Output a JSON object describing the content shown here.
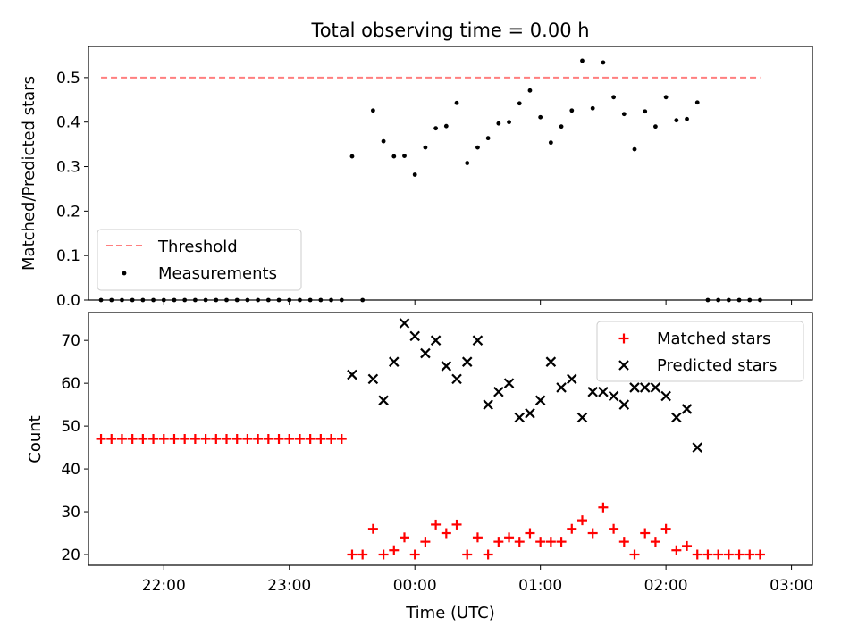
{
  "title": "Total observing time = 0.00 h",
  "xlabel": "Time (UTC)",
  "x_ticks": [
    "22:00",
    "23:00",
    "00:00",
    "01:00",
    "02:00",
    "03:00"
  ],
  "colors": {
    "threshold": "#ff7f7f",
    "measurements": "#000000",
    "matched": "#ff0000",
    "predicted": "#000000"
  },
  "chart_data": [
    {
      "type": "scatter",
      "ylabel": "Matched/Predicted stars",
      "ylim": [
        0,
        0.57
      ],
      "y_ticks": [
        0.0,
        0.1,
        0.2,
        0.3,
        0.4,
        0.5
      ],
      "y_tick_labels": [
        "0.0",
        "0.1",
        "0.2",
        "0.3",
        "0.4",
        "0.5"
      ],
      "xlim_minutes_from_2130": [
        -6.0,
        340.0
      ],
      "legend": {
        "placement": "lower-left",
        "entries": [
          "Threshold",
          "Measurements"
        ]
      },
      "threshold": {
        "name": "Threshold",
        "value": 0.5,
        "x": [
          "21:30",
          "02:45"
        ]
      },
      "series": [
        {
          "name": "Measurements",
          "points": [
            [
              "21:30",
              0.0
            ],
            [
              "21:35",
              0.0
            ],
            [
              "21:40",
              0.0
            ],
            [
              "21:45",
              0.0
            ],
            [
              "21:50",
              0.0
            ],
            [
              "21:55",
              0.0
            ],
            [
              "22:00",
              0.0
            ],
            [
              "22:05",
              0.0
            ],
            [
              "22:10",
              0.0
            ],
            [
              "22:15",
              0.0
            ],
            [
              "22:20",
              0.0
            ],
            [
              "22:25",
              0.0
            ],
            [
              "22:30",
              0.0
            ],
            [
              "22:35",
              0.0
            ],
            [
              "22:40",
              0.0
            ],
            [
              "22:45",
              0.0
            ],
            [
              "22:50",
              0.0
            ],
            [
              "22:55",
              0.0
            ],
            [
              "23:00",
              0.0
            ],
            [
              "23:05",
              0.0
            ],
            [
              "23:10",
              0.0
            ],
            [
              "23:15",
              0.0
            ],
            [
              "23:20",
              0.0
            ],
            [
              "23:25",
              0.0
            ],
            [
              "23:30",
              0.323
            ],
            [
              "23:35",
              0.0
            ],
            [
              "23:40",
              0.426
            ],
            [
              "23:45",
              0.357
            ],
            [
              "23:50",
              0.323
            ],
            [
              "23:55",
              0.324
            ],
            [
              "00:00",
              0.282
            ],
            [
              "00:05",
              0.343
            ],
            [
              "00:10",
              0.386
            ],
            [
              "00:15",
              0.391
            ],
            [
              "00:20",
              0.443
            ],
            [
              "00:25",
              0.308
            ],
            [
              "00:30",
              0.343
            ],
            [
              "00:35",
              0.364
            ],
            [
              "00:40",
              0.397
            ],
            [
              "00:45",
              0.4
            ],
            [
              "00:50",
              0.442
            ],
            [
              "00:55",
              0.471
            ],
            [
              "01:00",
              0.411
            ],
            [
              "01:05",
              0.354
            ],
            [
              "01:10",
              0.39
            ],
            [
              "01:15",
              0.426
            ],
            [
              "01:20",
              0.538
            ],
            [
              "01:25",
              0.431
            ],
            [
              "01:30",
              0.534
            ],
            [
              "01:35",
              0.456
            ],
            [
              "01:40",
              0.418
            ],
            [
              "01:45",
              0.339
            ],
            [
              "01:50",
              0.424
            ],
            [
              "01:55",
              0.39
            ],
            [
              "02:00",
              0.456
            ],
            [
              "02:05",
              0.404
            ],
            [
              "02:10",
              0.407
            ],
            [
              "02:15",
              0.444
            ],
            [
              "02:20",
              0.0
            ],
            [
              "02:25",
              0.0
            ],
            [
              "02:30",
              0.0
            ],
            [
              "02:35",
              0.0
            ],
            [
              "02:40",
              0.0
            ],
            [
              "02:45",
              0.0
            ]
          ]
        }
      ]
    },
    {
      "type": "scatter",
      "ylabel": "Count",
      "ylim": [
        17.5,
        76.5
      ],
      "y_ticks": [
        20,
        30,
        40,
        50,
        60,
        70
      ],
      "y_tick_labels": [
        "20",
        "30",
        "40",
        "50",
        "60",
        "70"
      ],
      "legend": {
        "placement": "upper-right",
        "entries": [
          "Matched stars",
          "Predicted stars"
        ]
      },
      "series": [
        {
          "name": "Matched stars",
          "marker": "plus",
          "points": [
            [
              "21:30",
              47
            ],
            [
              "21:35",
              47
            ],
            [
              "21:40",
              47
            ],
            [
              "21:45",
              47
            ],
            [
              "21:50",
              47
            ],
            [
              "21:55",
              47
            ],
            [
              "22:00",
              47
            ],
            [
              "22:05",
              47
            ],
            [
              "22:10",
              47
            ],
            [
              "22:15",
              47
            ],
            [
              "22:20",
              47
            ],
            [
              "22:25",
              47
            ],
            [
              "22:30",
              47
            ],
            [
              "22:35",
              47
            ],
            [
              "22:40",
              47
            ],
            [
              "22:45",
              47
            ],
            [
              "22:50",
              47
            ],
            [
              "22:55",
              47
            ],
            [
              "23:00",
              47
            ],
            [
              "23:05",
              47
            ],
            [
              "23:10",
              47
            ],
            [
              "23:15",
              47
            ],
            [
              "23:20",
              47
            ],
            [
              "23:25",
              47
            ],
            [
              "23:30",
              20
            ],
            [
              "23:35",
              20
            ],
            [
              "23:40",
              26
            ],
            [
              "23:45",
              20
            ],
            [
              "23:50",
              21
            ],
            [
              "23:55",
              24
            ],
            [
              "00:00",
              20
            ],
            [
              "00:05",
              23
            ],
            [
              "00:10",
              27
            ],
            [
              "00:15",
              25
            ],
            [
              "00:20",
              27
            ],
            [
              "00:25",
              20
            ],
            [
              "00:30",
              24
            ],
            [
              "00:35",
              20
            ],
            [
              "00:40",
              23
            ],
            [
              "00:45",
              24
            ],
            [
              "00:50",
              23
            ],
            [
              "00:55",
              25
            ],
            [
              "01:00",
              23
            ],
            [
              "01:05",
              23
            ],
            [
              "01:10",
              23
            ],
            [
              "01:15",
              26
            ],
            [
              "01:20",
              28
            ],
            [
              "01:25",
              25
            ],
            [
              "01:30",
              31
            ],
            [
              "01:35",
              26
            ],
            [
              "01:40",
              23
            ],
            [
              "01:45",
              20
            ],
            [
              "01:50",
              25
            ],
            [
              "01:55",
              23
            ],
            [
              "02:00",
              26
            ],
            [
              "02:05",
              21
            ],
            [
              "02:10",
              22
            ],
            [
              "02:15",
              20
            ],
            [
              "02:20",
              20
            ],
            [
              "02:25",
              20
            ],
            [
              "02:30",
              20
            ],
            [
              "02:35",
              20
            ],
            [
              "02:40",
              20
            ],
            [
              "02:45",
              20
            ]
          ]
        },
        {
          "name": "Predicted stars",
          "marker": "x",
          "points": [
            [
              "23:30",
              62
            ],
            [
              "23:40",
              61
            ],
            [
              "23:45",
              56
            ],
            [
              "23:50",
              65
            ],
            [
              "23:55",
              74
            ],
            [
              "00:00",
              71
            ],
            [
              "00:05",
              67
            ],
            [
              "00:10",
              70
            ],
            [
              "00:15",
              64
            ],
            [
              "00:20",
              61
            ],
            [
              "00:25",
              65
            ],
            [
              "00:30",
              70
            ],
            [
              "00:35",
              55
            ],
            [
              "00:40",
              58
            ],
            [
              "00:45",
              60
            ],
            [
              "00:50",
              52
            ],
            [
              "00:55",
              53
            ],
            [
              "01:00",
              56
            ],
            [
              "01:05",
              65
            ],
            [
              "01:10",
              59
            ],
            [
              "01:15",
              61
            ],
            [
              "01:20",
              52
            ],
            [
              "01:25",
              58
            ],
            [
              "01:30",
              58
            ],
            [
              "01:35",
              57
            ],
            [
              "01:40",
              55
            ],
            [
              "01:45",
              59
            ],
            [
              "01:50",
              59
            ],
            [
              "01:55",
              59
            ],
            [
              "02:00",
              57
            ],
            [
              "02:05",
              52
            ],
            [
              "02:10",
              54
            ],
            [
              "02:15",
              45
            ]
          ]
        }
      ]
    }
  ]
}
